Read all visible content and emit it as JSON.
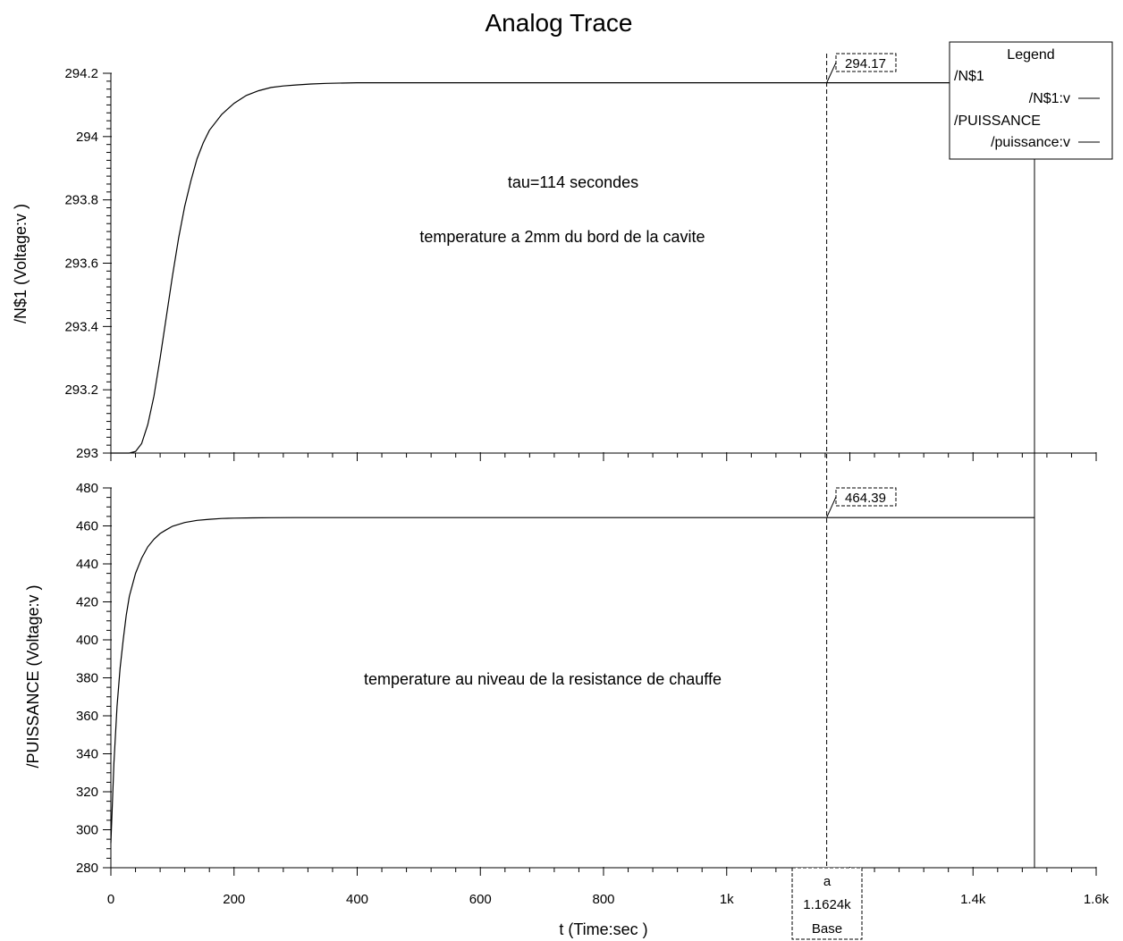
{
  "title": "Analog Trace",
  "legend": {
    "title": "Legend",
    "groups": [
      {
        "name": "/N$1",
        "entry": "/N$1:v"
      },
      {
        "name": "/PUISSANCE",
        "entry": "/puissance:v"
      }
    ]
  },
  "xaxis": {
    "label": "t (Time:sec )",
    "range": [
      0,
      1600
    ],
    "ticks": [
      {
        "v": 0,
        "label": "0"
      },
      {
        "v": 200,
        "label": "200"
      },
      {
        "v": 400,
        "label": "400"
      },
      {
        "v": 600,
        "label": "600"
      },
      {
        "v": 800,
        "label": "800"
      },
      {
        "v": 1000,
        "label": "1k"
      },
      {
        "v": 1200,
        "label": "1.2k"
      },
      {
        "v": 1400,
        "label": "1.4k"
      },
      {
        "v": 1600,
        "label": "1.6k"
      }
    ]
  },
  "cursor": {
    "name": "a",
    "value_label": "1.1624k",
    "mode": "Base",
    "x": 1162.4
  },
  "chart_data": [
    {
      "type": "line",
      "title": "",
      "xlabel": "t (Time:sec )",
      "ylabel": "/N$1 (Voltage:v )",
      "xlim": [
        0,
        1600
      ],
      "ylim": [
        293,
        294.2
      ],
      "yticks": [
        "293",
        "293.2",
        "293.4",
        "293.6",
        "293.8",
        "294",
        "294.2"
      ],
      "annotations": [
        "tau=114 secondes",
        "temperature a 2mm du bord de la cavite"
      ],
      "cursor_readout": "294.17",
      "series": [
        {
          "name": "/N$1:v",
          "x": [
            0,
            30,
            40,
            50,
            60,
            70,
            80,
            90,
            100,
            110,
            120,
            130,
            140,
            150,
            160,
            180,
            200,
            220,
            240,
            260,
            280,
            300,
            325,
            350,
            400,
            500,
            700,
            1000,
            1300,
            1500
          ],
          "y": [
            293.0,
            293.0,
            293.005,
            293.03,
            293.09,
            293.18,
            293.3,
            293.43,
            293.56,
            293.68,
            293.78,
            293.86,
            293.93,
            293.98,
            294.02,
            294.07,
            294.105,
            294.13,
            294.145,
            294.155,
            294.16,
            294.163,
            294.166,
            294.168,
            294.17,
            294.17,
            294.17,
            294.17,
            294.17,
            294.17
          ]
        }
      ]
    },
    {
      "type": "line",
      "title": "",
      "xlabel": "t (Time:sec )",
      "ylabel": "/PUISSANCE (Voltage:v )",
      "xlim": [
        0,
        1600
      ],
      "ylim": [
        280,
        480
      ],
      "yticks": [
        "280",
        "300",
        "320",
        "340",
        "360",
        "380",
        "400",
        "420",
        "440",
        "460",
        "480"
      ],
      "annotations": [
        "temperature au niveau de la resistance de chauffe"
      ],
      "cursor_readout": "464.39",
      "series": [
        {
          "name": "/puissance:v",
          "x": [
            0,
            2,
            5,
            10,
            15,
            20,
            25,
            30,
            40,
            50,
            60,
            70,
            80,
            90,
            100,
            120,
            140,
            160,
            180,
            200,
            230,
            260,
            300,
            400,
            600,
            900,
            1200,
            1500
          ],
          "y": [
            293,
            310,
            335,
            365,
            385,
            400,
            413,
            423,
            435,
            443,
            449,
            453,
            456,
            458,
            459.8,
            461.8,
            462.9,
            463.5,
            463.9,
            464.1,
            464.25,
            464.32,
            464.36,
            464.38,
            464.39,
            464.39,
            464.39,
            464.39
          ]
        }
      ]
    }
  ]
}
